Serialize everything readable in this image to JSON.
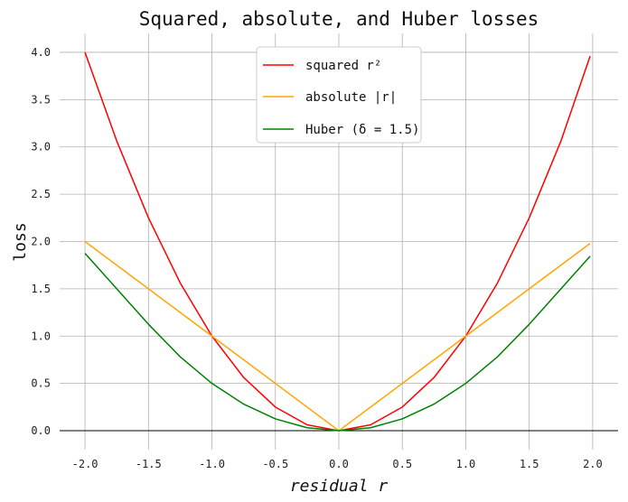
{
  "chart_data": {
    "type": "line",
    "title": "Squared, absolute, and Huber losses",
    "xlabel": "residual r",
    "ylabel": "loss",
    "xlim": [
      -2.2,
      2.2
    ],
    "ylim": [
      -0.2,
      4.2
    ],
    "x_ticks": [
      -2.0,
      -1.5,
      -1.0,
      -0.5,
      0.0,
      0.5,
      1.0,
      1.5,
      2.0
    ],
    "x_tick_labels": [
      "-2.0",
      "-1.5",
      "-1.0",
      "-0.5",
      "0.0",
      "0.5",
      "1.0",
      "1.5",
      "2.0"
    ],
    "y_ticks": [
      0.0,
      0.5,
      1.0,
      1.5,
      2.0,
      2.5,
      3.0,
      3.5,
      4.0
    ],
    "y_tick_labels": [
      "0.0",
      "0.5",
      "1.0",
      "1.5",
      "2.0",
      "2.5",
      "3.0",
      "3.5",
      "4.0"
    ],
    "grid": true,
    "legend_position": "top-center",
    "series": [
      {
        "name": "squared r²",
        "color": "#ff0000",
        "x": [
          -2.0,
          -1.75,
          -1.5,
          -1.25,
          -1.0,
          -0.75,
          -0.5,
          -0.25,
          0.0,
          0.25,
          0.5,
          0.75,
          1.0,
          1.25,
          1.5,
          1.75,
          1.98
        ],
        "y": [
          4.0,
          3.0625,
          2.25,
          1.5625,
          1.0,
          0.5625,
          0.25,
          0.0625,
          0.0,
          0.0625,
          0.25,
          0.5625,
          1.0,
          1.5625,
          2.25,
          3.0625,
          3.96
        ]
      },
      {
        "name": "absolute |r|",
        "color": "#ffa500",
        "x": [
          -2.0,
          -1.0,
          0.0,
          1.0,
          1.98
        ],
        "y": [
          2.0,
          1.0,
          0.0,
          1.0,
          1.98
        ]
      },
      {
        "name": "Huber (δ = 1.5)",
        "color": "#008000",
        "x": [
          -2.0,
          -1.75,
          -1.5,
          -1.25,
          -1.0,
          -0.75,
          -0.5,
          -0.25,
          0.0,
          0.25,
          0.5,
          0.75,
          1.0,
          1.25,
          1.5,
          1.75,
          1.98
        ],
        "y": [
          1.875,
          1.5,
          1.125,
          0.78125,
          0.5,
          0.28125,
          0.125,
          0.03125,
          0.0,
          0.03125,
          0.125,
          0.28125,
          0.5,
          0.78125,
          1.125,
          1.5,
          1.845
        ]
      }
    ]
  }
}
